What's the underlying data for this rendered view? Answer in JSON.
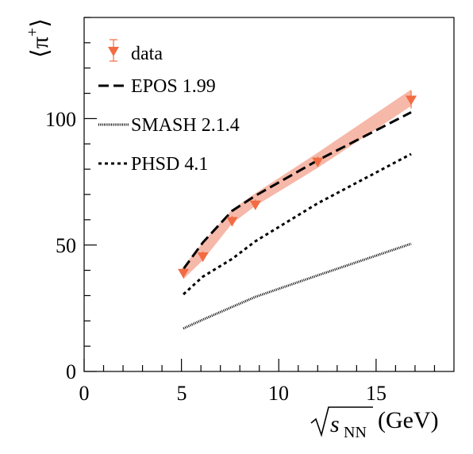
{
  "chart_data": {
    "type": "line",
    "xlabel": "(GeV)",
    "xlabel_symbol": "s",
    "xlabel_subscript": "NN",
    "ylabel_symbol": "π",
    "ylabel_superscript": "+",
    "xlim": [
      0,
      19
    ],
    "ylim": [
      0,
      140
    ],
    "x_ticks": [
      "0",
      "5",
      "10",
      "15"
    ],
    "y_ticks": [
      "0",
      "50",
      "100"
    ],
    "grid": false,
    "legend_position": "top-left",
    "series": [
      {
        "name": "data",
        "kind": "points",
        "color": "#f26b43",
        "x": [
          5.1,
          6.1,
          7.6,
          8.8,
          12.0,
          16.8
        ],
        "y": [
          39.0,
          45.5,
          59.5,
          66.0,
          83.0,
          107.5
        ],
        "yerr": [
          2.0,
          2.0,
          2.0,
          2.0,
          2.0,
          3.5
        ]
      },
      {
        "name": "EPOS 1.99",
        "kind": "line",
        "dash": "long",
        "color": "#000000",
        "x": [
          5.1,
          6.1,
          7.6,
          8.8,
          12.0,
          16.8
        ],
        "y": [
          40.5,
          51.0,
          63.5,
          69.5,
          83.5,
          102.5
        ],
        "band": {
          "color": "#f6b8a8",
          "lower": [
            36.5,
            44.0,
            58.5,
            65.5,
            80.5,
            105.0
          ],
          "upper": [
            41.5,
            51.0,
            64.0,
            70.5,
            86.5,
            111.5
          ]
        }
      },
      {
        "name": "SMASH 2.1.4",
        "kind": "line",
        "dash": "dotted-dense",
        "color": "#000000",
        "x": [
          5.1,
          6.1,
          7.6,
          8.8,
          12.0,
          16.8
        ],
        "y": [
          17.0,
          20.5,
          25.5,
          29.5,
          38.0,
          50.5
        ]
      },
      {
        "name": "PHSD 4.1",
        "kind": "line",
        "dash": "short",
        "color": "#000000",
        "x": [
          5.1,
          6.1,
          7.6,
          8.8,
          12.0,
          16.8
        ],
        "y": [
          30.5,
          37.5,
          44.5,
          51.5,
          66.5,
          86.0
        ]
      }
    ]
  }
}
